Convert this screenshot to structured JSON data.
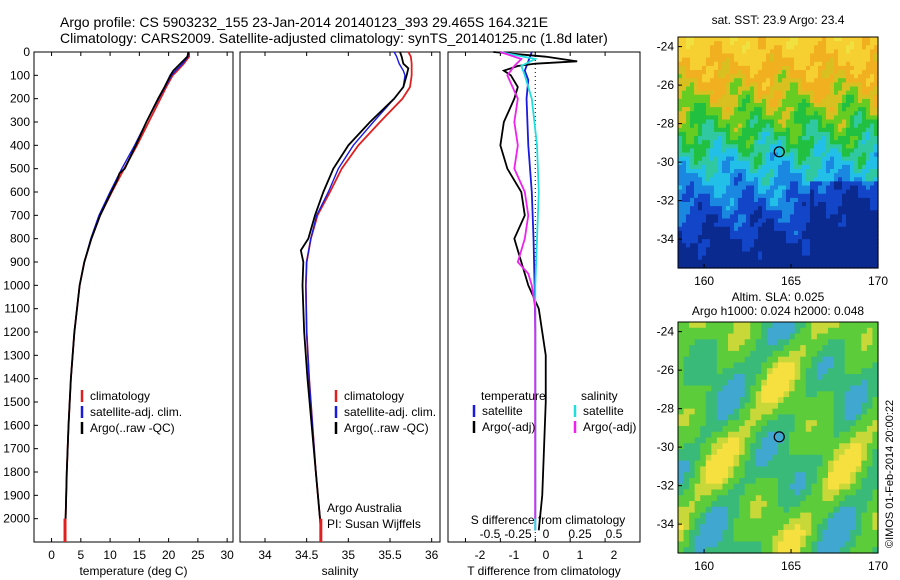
{
  "header": {
    "line1": "Argo profile: CS 5903232_155 23-Jan-2014 20140123_393 29.465S 164.321E",
    "line2": "Climatology: CARS2009. Satellite-adjusted climatology: synTS_20140125.nc (1.8d later)"
  },
  "colors": {
    "climatology": "#e02020",
    "satellite": "#1a1adf",
    "argo": "#000000",
    "sat_s": "#22dddd",
    "argo_s": "#ee22ee"
  },
  "chart_data": [
    {
      "type": "line",
      "xlabel": "temperature (deg C)",
      "ylabel": "",
      "xlim": [
        -3,
        31
      ],
      "ylim": [
        2100,
        0
      ],
      "xticks": [
        0,
        5,
        10,
        15,
        20,
        25,
        30
      ],
      "yticks": [
        0,
        100,
        200,
        300,
        400,
        500,
        600,
        700,
        800,
        900,
        1000,
        1100,
        1200,
        1300,
        1400,
        1500,
        1600,
        1700,
        1800,
        1900,
        2000
      ],
      "legend": [
        "climatology",
        "satellite-adj. clim.",
        "Argo(..raw -QC)"
      ],
      "series": [
        {
          "name": "climatology",
          "depth": [
            0,
            20,
            50,
            80,
            100,
            150,
            200,
            300,
            400,
            500,
            600,
            700,
            800,
            900,
            1000,
            1200,
            1400,
            1600,
            1800,
            2000,
            2050
          ],
          "values": [
            23.5,
            23.5,
            22.6,
            21.5,
            20.7,
            19.6,
            18.6,
            16.6,
            14.6,
            12.4,
            10.3,
            8.3,
            6.8,
            5.6,
            4.8,
            3.9,
            3.3,
            2.9,
            2.6,
            2.4,
            2.3
          ]
        },
        {
          "name": "satellite-adj. clim.",
          "depth": [
            0,
            20,
            50,
            80,
            100,
            150,
            200,
            300,
            400,
            500,
            600,
            700,
            800,
            900,
            1000,
            1200,
            1400,
            1600,
            1800,
            2000,
            2050
          ],
          "values": [
            23.3,
            23.3,
            22.4,
            21.2,
            20.5,
            19.4,
            18.3,
            16.2,
            14.2,
            12.0,
            10.0,
            8.1,
            6.7,
            5.6,
            4.8,
            3.9,
            3.3,
            2.9,
            2.6,
            2.4,
            2.3
          ]
        },
        {
          "name": "Argo(..raw -QC)",
          "depth": [
            0,
            20,
            50,
            80,
            100,
            150,
            200,
            300,
            400,
            500,
            520,
            550,
            600,
            700,
            800,
            900,
            1000,
            1200,
            1400,
            1600,
            1800,
            2000,
            2050
          ],
          "values": [
            23.4,
            23.2,
            22.0,
            20.8,
            20.3,
            19.3,
            18.2,
            16.2,
            14.4,
            12.5,
            11.6,
            11.2,
            10.2,
            8.3,
            6.8,
            5.6,
            4.8,
            3.9,
            3.3,
            2.9,
            2.6,
            2.4,
            2.3
          ]
        }
      ]
    },
    {
      "type": "line",
      "xlabel": "salinity",
      "xlim": [
        33.7,
        36.1
      ],
      "ylim": [
        2100,
        0
      ],
      "xticks": [
        34,
        34.5,
        35,
        35.5,
        36
      ],
      "legend": [
        "climatology",
        "satellite-adj. clim.",
        "Argo(..raw -QC)"
      ],
      "annotation": [
        "Argo Australia",
        "PI: Susan Wijffels"
      ],
      "series": [
        {
          "name": "climatology",
          "depth": [
            0,
            20,
            50,
            80,
            100,
            150,
            200,
            300,
            400,
            500,
            600,
            700,
            800,
            900,
            1000,
            1200,
            1400,
            1600,
            1800,
            2000,
            2050
          ],
          "values": [
            35.72,
            35.75,
            35.76,
            35.76,
            35.76,
            35.74,
            35.65,
            35.38,
            35.12,
            34.92,
            34.78,
            34.63,
            34.55,
            34.5,
            34.49,
            34.5,
            34.53,
            34.57,
            34.61,
            34.66,
            34.67
          ]
        },
        {
          "name": "satellite-adj. clim.",
          "depth": [
            0,
            20,
            50,
            80,
            100,
            150,
            200,
            300,
            400,
            500,
            600,
            700,
            800,
            900,
            1000,
            1200,
            1400,
            1600,
            1800,
            2000,
            2050
          ],
          "values": [
            35.55,
            35.58,
            35.61,
            35.66,
            35.68,
            35.66,
            35.55,
            35.3,
            35.06,
            34.88,
            34.76,
            34.62,
            34.55,
            34.5,
            34.49,
            34.5,
            34.53,
            34.57,
            34.61,
            34.66,
            34.67
          ]
        },
        {
          "name": "Argo(..raw -QC)",
          "depth": [
            0,
            20,
            50,
            70,
            100,
            150,
            200,
            300,
            400,
            500,
            600,
            700,
            800,
            850,
            900,
            1000,
            1200,
            1400,
            1600,
            1800,
            2000,
            2050
          ],
          "values": [
            35.62,
            35.64,
            35.66,
            35.72,
            35.7,
            35.66,
            35.55,
            35.26,
            35.0,
            34.82,
            34.7,
            34.6,
            34.52,
            34.43,
            34.46,
            34.45,
            34.47,
            34.51,
            34.56,
            34.61,
            34.66,
            34.67
          ]
        }
      ]
    },
    {
      "type": "line",
      "xlabel": "T difference from climatology",
      "x2label": "S difference from climatology",
      "xlim": [
        -2.5,
        3
      ],
      "ylim": [
        2100,
        0
      ],
      "xticks": [
        -2,
        -1,
        0,
        1,
        2
      ],
      "x2ticks": [
        "-0.5",
        "-0.25",
        "0",
        "0.25",
        "0.5"
      ],
      "legend_left_title": "temperature",
      "legend_right_title": "salinity",
      "legend": [
        "satellite",
        "Argo(-adj)",
        "satellite",
        "Argo(-adj)"
      ],
      "series": [
        {
          "name": "satellite",
          "depth": [
            0,
            40,
            80,
            120,
            200,
            400,
            600,
            800,
            1000,
            1200,
            1600,
            2000,
            2050
          ],
          "values": [
            -0.1,
            -0.2,
            -0.3,
            -0.2,
            -0.25,
            -0.2,
            -0.1,
            -0.05,
            -0.02,
            0,
            0,
            0,
            0
          ]
        },
        {
          "name": "Argo(-adj)",
          "depth": [
            0,
            20,
            40,
            50,
            60,
            80,
            100,
            150,
            200,
            300,
            400,
            500,
            600,
            700,
            800,
            850,
            900,
            950,
            1000,
            1100,
            1300,
            1500,
            1700,
            1900,
            2050
          ],
          "values": [
            -1.2,
            0.3,
            1.2,
            0.0,
            -0.5,
            -0.9,
            -0.7,
            -0.5,
            -0.6,
            -0.9,
            -1.0,
            -0.8,
            -0.4,
            -0.3,
            -0.6,
            -0.5,
            -0.4,
            -0.3,
            -0.2,
            0.1,
            0.3,
            0.3,
            0.25,
            0.2,
            0.1
          ]
        },
        {
          "name": "satellite",
          "depth": [
            0,
            30,
            60,
            100,
            200,
            400,
            600,
            800,
            1000,
            1200,
            1600,
            2000,
            2050
          ],
          "values": [
            -1.0,
            0.0,
            -0.4,
            -0.3,
            -0.1,
            0.05,
            0.1,
            0.05,
            0.0,
            0.0,
            0.0,
            0.0,
            0.0
          ]
        },
        {
          "name": "Argo(-adj)",
          "depth": [
            0,
            30,
            60,
            100,
            200,
            300,
            400,
            500,
            600,
            700,
            800,
            900,
            950,
            1000,
            1100,
            1300,
            1600,
            2000
          ],
          "values": [
            -1.0,
            -0.4,
            -0.6,
            -0.8,
            -0.5,
            -0.6,
            -0.5,
            -0.6,
            -0.3,
            -0.2,
            -0.3,
            -0.5,
            -0.2,
            -0.1,
            0.0,
            0.0,
            0.0,
            0.0
          ]
        }
      ]
    },
    {
      "type": "heatmap",
      "title": "sat. SST: 23.9 Argo: 23.4",
      "xlim": [
        158.5,
        170
      ],
      "ylim": [
        -35.5,
        -23.5
      ],
      "xticks": [
        160,
        165,
        170
      ],
      "yticks": [
        -24,
        -26,
        -28,
        -30,
        -32,
        -34
      ],
      "marker": {
        "lon": 164.321,
        "lat": -29.465
      }
    },
    {
      "type": "heatmap",
      "title": "Altim. SLA: 0.025",
      "subtitle": "Argo h1000: 0.024 h2000: 0.048",
      "xlim": [
        158.5,
        170
      ],
      "ylim": [
        -35.5,
        -23.5
      ],
      "xticks": [
        160,
        165,
        170
      ],
      "yticks": [
        -24,
        -26,
        -28,
        -30,
        -32,
        -34
      ],
      "marker": {
        "lon": 164.321,
        "lat": -29.465
      }
    }
  ],
  "footer_vertical": "©IMOS 01-Feb-2014 20:00:22"
}
